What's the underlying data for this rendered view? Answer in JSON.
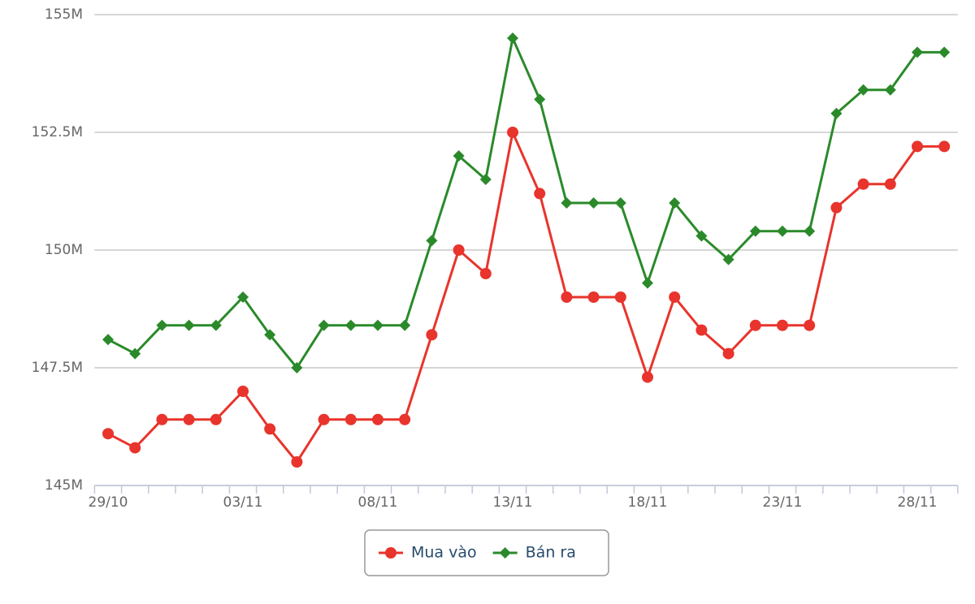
{
  "chart_data": {
    "type": "line",
    "categories": [
      "29/10",
      null,
      null,
      null,
      null,
      "03/11",
      null,
      null,
      null,
      null,
      "08/11",
      null,
      null,
      null,
      null,
      "13/11",
      null,
      null,
      null,
      null,
      "18/11",
      null,
      null,
      null,
      null,
      "23/11",
      null,
      null,
      null,
      null,
      "28/11",
      null
    ],
    "series": [
      {
        "name": "Mua vào",
        "color": "#e8342c",
        "marker": "circle",
        "values": [
          146.1,
          145.8,
          146.4,
          146.4,
          146.4,
          147.0,
          146.2,
          145.5,
          146.4,
          146.4,
          146.4,
          146.4,
          148.2,
          150.0,
          149.5,
          152.5,
          151.2,
          149.0,
          149.0,
          149.0,
          147.3,
          149.0,
          148.3,
          147.8,
          148.4,
          148.4,
          148.4,
          150.9,
          151.4,
          151.4,
          152.2,
          152.2
        ]
      },
      {
        "name": "Bán ra",
        "color": "#2a8a2a",
        "marker": "diamond",
        "values": [
          148.1,
          147.8,
          148.4,
          148.4,
          148.4,
          149.0,
          148.2,
          147.5,
          148.4,
          148.4,
          148.4,
          148.4,
          150.2,
          152.0,
          151.5,
          154.5,
          153.2,
          151.0,
          151.0,
          151.0,
          149.3,
          151.0,
          150.3,
          149.8,
          150.4,
          150.4,
          150.4,
          152.9,
          153.4,
          153.4,
          154.2,
          154.2
        ]
      }
    ],
    "ylim": [
      145,
      155
    ],
    "yticks": [
      {
        "value": 145,
        "label": "145M"
      },
      {
        "value": 147.5,
        "label": "147.5M"
      },
      {
        "value": 150,
        "label": "150M"
      },
      {
        "value": 152.5,
        "label": "152.5M"
      },
      {
        "value": 155,
        "label": "155M"
      }
    ],
    "grid": true,
    "legend": "bottom"
  }
}
